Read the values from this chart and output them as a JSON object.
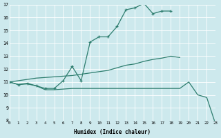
{
  "xlabel": "Humidex (Indice chaleur)",
  "xlim": [
    0,
    23
  ],
  "ylim": [
    8,
    17
  ],
  "yticks": [
    8,
    9,
    10,
    11,
    12,
    13,
    14,
    15,
    16,
    17
  ],
  "xticks": [
    0,
    1,
    2,
    3,
    4,
    5,
    6,
    7,
    8,
    9,
    10,
    11,
    12,
    13,
    14,
    15,
    16,
    17,
    18,
    19,
    20,
    21,
    22,
    23
  ],
  "bg_color": "#cde9ed",
  "line_color": "#2d7d6e",
  "line1_x": [
    0,
    1,
    2,
    3,
    4,
    5,
    6,
    7,
    8,
    9,
    10,
    11,
    12,
    13,
    14,
    15,
    16,
    17,
    18
  ],
  "line1_y": [
    11.0,
    10.8,
    10.9,
    10.7,
    10.5,
    10.5,
    11.1,
    12.2,
    11.1,
    14.1,
    14.5,
    14.5,
    15.3,
    16.6,
    16.75,
    17.1,
    16.3,
    16.5,
    16.5
  ],
  "line2_x": [
    0,
    1,
    2,
    3,
    4,
    5,
    6,
    7,
    8,
    9,
    10,
    11,
    12,
    13,
    14,
    15,
    16,
    17,
    18,
    19
  ],
  "line2_y": [
    11.0,
    11.1,
    11.2,
    11.3,
    11.35,
    11.4,
    11.45,
    11.5,
    11.6,
    11.7,
    11.8,
    11.9,
    12.1,
    12.3,
    12.4,
    12.6,
    12.75,
    12.85,
    13.0,
    12.9
  ],
  "line3_x": [
    0,
    1,
    2,
    3,
    4,
    5,
    6,
    7,
    8,
    9,
    10,
    11,
    12,
    13,
    14,
    15,
    16,
    17,
    18,
    19,
    20,
    21,
    22,
    23
  ],
  "line3_y": [
    11.0,
    10.8,
    10.85,
    10.7,
    10.4,
    10.4,
    10.45,
    10.5,
    10.5,
    10.5,
    10.5,
    10.5,
    10.5,
    10.5,
    10.5,
    10.5,
    10.5,
    10.5,
    10.5,
    10.5,
    11.0,
    10.0,
    9.8,
    7.7
  ]
}
